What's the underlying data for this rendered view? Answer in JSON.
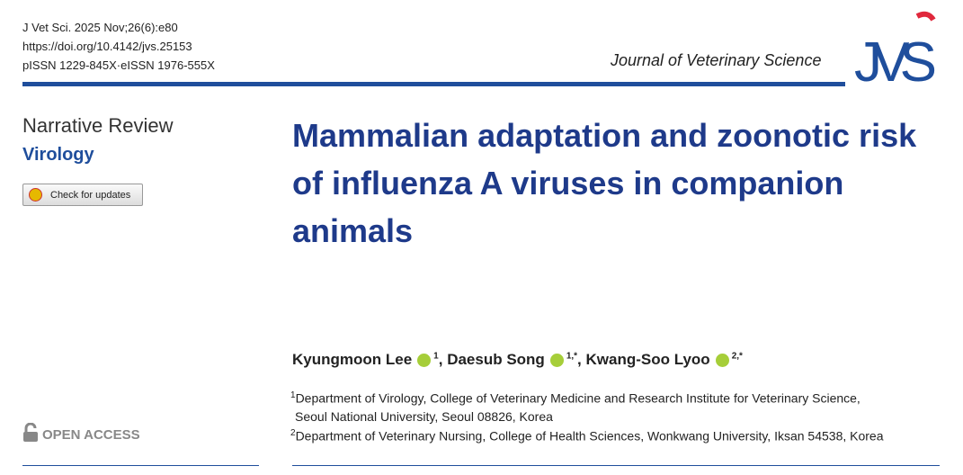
{
  "header": {
    "citation": [
      "J Vet Sci. 2025 Nov;26(6):e80",
      "https://doi.org/10.4142/jvs.25153",
      "pISSN 1229-845X·eISSN 1976-555X"
    ],
    "journal": "Journal of Veterinary Science",
    "logo": "JVS"
  },
  "side": {
    "article_type": "Narrative Review",
    "subject": "Virology",
    "updates_button": "Check for updates",
    "open_access": "OPEN ACCESS"
  },
  "title": "Mammalian adaptation and zoonotic risk of influenza A viruses in companion animals",
  "authors": [
    {
      "name": "Kyungmoon Lee",
      "sup": "1"
    },
    {
      "name": "Daesub Song",
      "sup": "1,*"
    },
    {
      "name": "Kwang-Soo Lyoo",
      "sup": "2,*"
    }
  ],
  "affiliations": [
    {
      "sup": "1",
      "lines": [
        "Department of Virology, College of Veterinary Medicine and Research Institute for Veterinary Science,",
        "Seoul National University, Seoul 08826, Korea"
      ]
    },
    {
      "sup": "2",
      "lines": [
        "Department of Veterinary Nursing, College of Health Sciences, Wonkwang University, Iksan 54538, Korea"
      ]
    }
  ]
}
